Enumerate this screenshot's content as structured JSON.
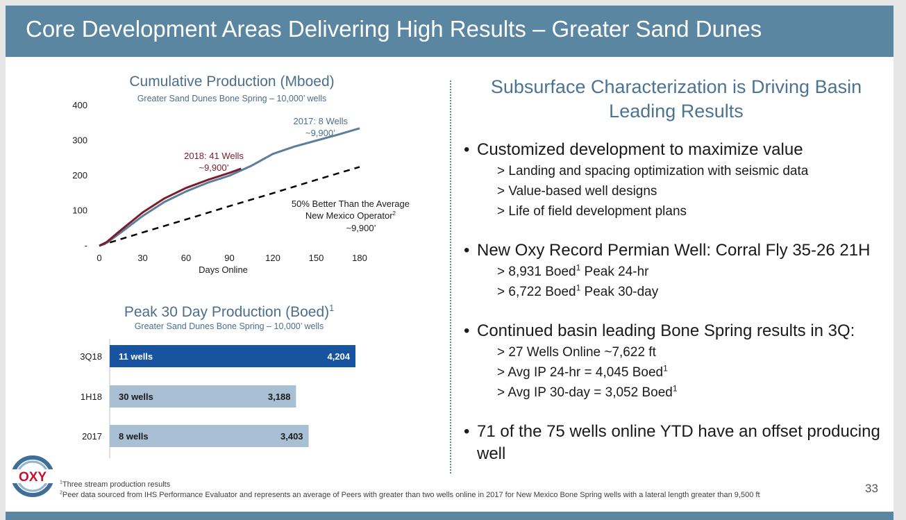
{
  "slide": {
    "title": "Core Development Areas Delivering High Results – Greater Sand Dunes",
    "page_number": "33"
  },
  "colors": {
    "header": "#5a86a2",
    "series_2018": "#7b1c2a",
    "series_2017": "#5a7e9c",
    "bar_highlight": "#17539e",
    "bar_default": "#a8bfd4"
  },
  "line_chart": {
    "title": "Cumulative Production (Mboed)",
    "subtitle": "Greater Sand Dunes Bone Spring – 10,000’ wells",
    "xlabel": "Days Online",
    "label_2018": [
      "2018: 41 Wells",
      "~9,900’"
    ],
    "label_2017": [
      "2017: 8 Wells",
      "~9,900’"
    ],
    "label_avg": [
      "50% Better Than the Average",
      "New Mexico Operator",
      "~9,900’"
    ]
  },
  "bar_chart": {
    "title": "Peak 30 Day Production (Boed)",
    "title_sup": "1",
    "subtitle": "Greater Sand Dunes Bone Spring – 10,000’ wells"
  },
  "chart_data": [
    {
      "type": "line",
      "title": "Cumulative Production (Mboed)",
      "subtitle": "Greater Sand Dunes Bone Spring – 10,000’ wells",
      "xlabel": "Days Online",
      "ylabel": "",
      "xlim": [
        0,
        180
      ],
      "ylim": [
        0,
        400
      ],
      "x_ticks": [
        "0",
        "30",
        "60",
        "90",
        "120",
        "150",
        "180"
      ],
      "y_ticks": [
        "-",
        "100",
        "200",
        "300",
        "400"
      ],
      "grid": false,
      "series": [
        {
          "name": "2018: 41 Wells ~9,900’",
          "style": "solid",
          "x": [
            0,
            5,
            15,
            30,
            45,
            60,
            75,
            90,
            98
          ],
          "y": [
            0,
            10,
            45,
            95,
            135,
            165,
            188,
            208,
            220
          ]
        },
        {
          "name": "2017: 8 Wells ~9,900’",
          "style": "solid",
          "x": [
            0,
            5,
            15,
            30,
            45,
            60,
            75,
            90,
            105,
            120,
            135,
            150,
            165,
            180
          ],
          "y": [
            0,
            8,
            38,
            85,
            125,
            155,
            180,
            200,
            228,
            262,
            283,
            300,
            317,
            335
          ]
        },
        {
          "name": "50% Better Than the Average New Mexico Operator ~9,900’",
          "style": "dashed",
          "x": [
            0,
            30,
            60,
            90,
            120,
            150,
            180
          ],
          "y": [
            0,
            38,
            75,
            113,
            150,
            188,
            225
          ]
        }
      ]
    },
    {
      "type": "bar",
      "orientation": "horizontal",
      "title": "Peak 30 Day Production (Boed)",
      "subtitle": "Greater Sand Dunes Bone Spring – 10,000’ wells",
      "categories": [
        "3Q18",
        "1H18",
        "2017"
      ],
      "inner_labels": [
        "11 wells",
        "30 wells",
        "8 wells"
      ],
      "values": [
        4204,
        3188,
        3403
      ],
      "value_labels": [
        "4,204",
        "3,188",
        "3,403"
      ],
      "highlight": [
        true,
        false,
        false
      ]
    }
  ],
  "right": {
    "title": "Subsurface Characterization is Driving Basin Leading Results",
    "bullet": "•",
    "b1": {
      "text": "Customized development to maximize value",
      "subs": [
        "> Landing and spacing optimization with seismic data",
        "> Value-based well designs",
        "> Life of field development plans"
      ]
    },
    "b2": {
      "text": "New Oxy Record Permian Well: Corral Fly 35-26 21H",
      "sub1_pre": "> 8,931 Boed",
      "sub1_post": " Peak 24-hr",
      "sub2_pre": "> 6,722 Boed",
      "sub2_post": " Peak 30-day"
    },
    "b3": {
      "text": "Continued basin leading Bone Spring results in 3Q:",
      "sub1": "> 27 Wells Online ~7,622 ft",
      "sub2_pre": "> Avg IP 24-hr = 4,045 Boed",
      "sub3_pre": "> Avg IP 30-day = 3,052 Boed"
    },
    "b4": {
      "text": "71 of the 75 wells online YTD have an offset producing well"
    },
    "sup": "1"
  },
  "footnotes": {
    "n1": "Three stream production results",
    "n2": "Peer data sourced from IHS Performance Evaluator and represents an average of Peers with greater than two wells online in 2017 for New Mexico Bone Spring wells with a lateral length greater than 9,500 ft",
    "m1": "1",
    "m2": "2"
  },
  "logo": {
    "text": "OXY"
  }
}
